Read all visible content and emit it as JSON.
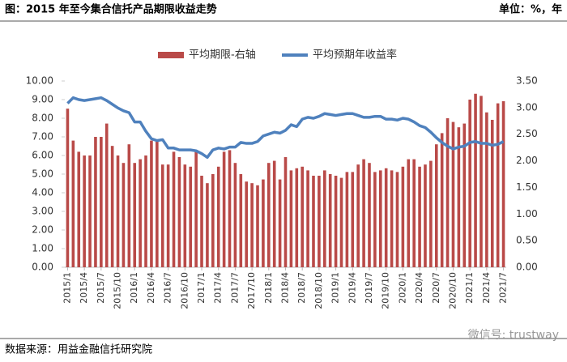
{
  "chart_data": {
    "type": "combo",
    "title": "图：2015 年至今集合信托产品期限收益走势",
    "unit_label": "单位：%，年",
    "source": "数据来源：用益金融信托研究院",
    "watermark": "微信号: trustway",
    "categories": [
      "2015/1",
      null,
      null,
      "2015/4",
      null,
      null,
      "2015/7",
      null,
      null,
      "2015/10",
      null,
      null,
      "2016/1",
      null,
      null,
      "2016/4",
      null,
      null,
      "2016/7",
      null,
      null,
      "2016/10",
      null,
      null,
      "2017/1",
      null,
      null,
      "2017/4",
      null,
      null,
      "2017/7",
      null,
      null,
      "2017/10",
      null,
      null,
      "2018/1",
      null,
      null,
      "2018/4",
      null,
      null,
      "2018/7",
      null,
      null,
      "2018/10",
      null,
      null,
      "2019/1",
      null,
      null,
      "2019/4",
      null,
      null,
      "2019/7",
      null,
      null,
      "2019/10",
      null,
      null,
      "2020/1",
      null,
      null,
      "2020/4",
      null,
      null,
      "2020/7",
      null,
      null,
      "2020/10",
      null,
      null,
      "2021/1",
      null,
      null,
      "2021/4",
      null,
      null,
      "2021/7"
    ],
    "series": [
      {
        "name": "平均期限-右轴",
        "type": "bar",
        "axis": "y2",
        "color": "#b94a48",
        "values": [
          2.98,
          2.38,
          2.17,
          2.1,
          2.1,
          2.45,
          2.45,
          2.7,
          2.28,
          2.1,
          1.96,
          2.31,
          1.96,
          2.03,
          2.1,
          2.38,
          2.38,
          1.93,
          1.93,
          2.17,
          2.07,
          1.93,
          1.89,
          2.2,
          1.72,
          1.58,
          1.75,
          1.89,
          2.17,
          2.2,
          1.96,
          1.75,
          1.61,
          1.58,
          1.54,
          1.65,
          1.96,
          2.0,
          1.65,
          2.07,
          1.82,
          1.86,
          1.89,
          1.82,
          1.72,
          1.72,
          1.82,
          1.75,
          1.72,
          1.68,
          1.79,
          1.79,
          1.93,
          2.03,
          1.96,
          1.79,
          1.82,
          1.86,
          1.82,
          1.79,
          1.89,
          2.03,
          2.03,
          1.89,
          1.93,
          2.0,
          2.31,
          2.52,
          2.8,
          2.73,
          2.63,
          2.7,
          3.15,
          3.26,
          3.22,
          2.91,
          2.77,
          3.08,
          3.12
        ]
      },
      {
        "name": "平均预期年收益率",
        "type": "line",
        "axis": "y",
        "color": "#4f81bd",
        "values": [
          8.8,
          9.1,
          9.0,
          8.95,
          9.0,
          9.05,
          9.1,
          8.95,
          8.75,
          8.55,
          8.4,
          8.3,
          7.8,
          7.8,
          7.3,
          6.9,
          6.8,
          6.85,
          6.4,
          6.4,
          6.3,
          6.3,
          6.3,
          6.25,
          6.1,
          5.9,
          6.3,
          6.4,
          6.35,
          6.45,
          6.45,
          6.7,
          6.65,
          6.65,
          6.75,
          7.05,
          7.15,
          7.25,
          7.2,
          7.35,
          7.65,
          7.55,
          7.95,
          8.05,
          8.0,
          8.1,
          8.25,
          8.2,
          8.15,
          8.2,
          8.25,
          8.25,
          8.15,
          8.05,
          8.05,
          8.1,
          8.1,
          7.95,
          7.95,
          7.9,
          8.0,
          7.95,
          7.8,
          7.6,
          7.5,
          7.25,
          6.95,
          6.7,
          6.5,
          6.35,
          6.45,
          6.5,
          6.7,
          6.75,
          6.65,
          6.65,
          6.55,
          6.6,
          6.75
        ]
      }
    ],
    "ylim": [
      0,
      10
    ],
    "yticks": [
      {
        "value": 0,
        "label": "0.00"
      },
      {
        "value": 1,
        "label": "1.00"
      },
      {
        "value": 2,
        "label": "2.00"
      },
      {
        "value": 3,
        "label": "3.00"
      },
      {
        "value": 4,
        "label": "4.00"
      },
      {
        "value": 5,
        "label": "5.00"
      },
      {
        "value": 6,
        "label": "6.00"
      },
      {
        "value": 7,
        "label": "7.00"
      },
      {
        "value": 8,
        "label": "8.00"
      },
      {
        "value": 9,
        "label": "9.00"
      },
      {
        "value": 10,
        "label": "10.00"
      }
    ],
    "y2lim": [
      0,
      3.5
    ],
    "y2ticks": [
      {
        "value": 0,
        "label": "0.00"
      },
      {
        "value": 0.5,
        "label": "0.50"
      },
      {
        "value": 1,
        "label": "1.00"
      },
      {
        "value": 1.5,
        "label": "1.50"
      },
      {
        "value": 2,
        "label": "2.00"
      },
      {
        "value": 2.5,
        "label": "2.50"
      },
      {
        "value": 3,
        "label": "3.00"
      },
      {
        "value": 3.5,
        "label": "3.50"
      }
    ],
    "legend": "top",
    "grid": false
  }
}
